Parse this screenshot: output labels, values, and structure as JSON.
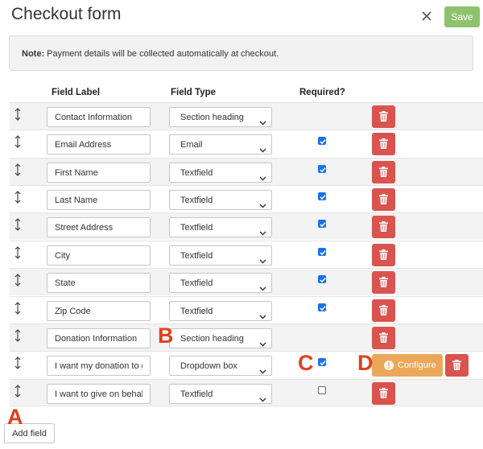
{
  "header": {
    "title": "Checkout form",
    "save_label": "Save"
  },
  "note": {
    "bold": "Note:",
    "text": " Payment details will be collected automatically at checkout."
  },
  "columns": {
    "label": "Field Label",
    "type": "Field Type",
    "required": "Required?"
  },
  "rows": [
    {
      "label": "Contact Information",
      "type": "Section heading",
      "required": null
    },
    {
      "label": "Email Address",
      "type": "Email",
      "required": true
    },
    {
      "label": "First Name",
      "type": "Textfield",
      "required": true
    },
    {
      "label": "Last Name",
      "type": "Textfield",
      "required": true
    },
    {
      "label": "Street Address",
      "type": "Textfield",
      "required": true
    },
    {
      "label": "City",
      "type": "Textfield",
      "required": true
    },
    {
      "label": "State",
      "type": "Textfield",
      "required": true
    },
    {
      "label": "Zip Code",
      "type": "Textfield",
      "required": true
    },
    {
      "label": "Donation Information",
      "type": "Section heading",
      "required": null
    },
    {
      "label": "I want my donation to go",
      "type": "Dropdown box",
      "required": true,
      "configure_label": "Configure"
    },
    {
      "label": "I want to give on behalf of",
      "type": "Textfield",
      "required": false
    }
  ],
  "add_field_label": "Add field",
  "markers": {
    "a": "A",
    "b": "B",
    "c": "C",
    "d": "D"
  },
  "colors": {
    "save": "#8fc26d",
    "delete": "#d9534f",
    "configure": "#eba85a",
    "checkbox": "#1a73e8",
    "marker": "#e0401e",
    "note_bg": "#f2f2f2",
    "stripe": "#f3f3f3"
  },
  "icons": {
    "close": "close-icon",
    "drag": "drag-handle-icon",
    "delete": "trash-icon",
    "info": "info-icon",
    "dropdown": "chevron-down-icon",
    "check": "checkmark-icon"
  }
}
